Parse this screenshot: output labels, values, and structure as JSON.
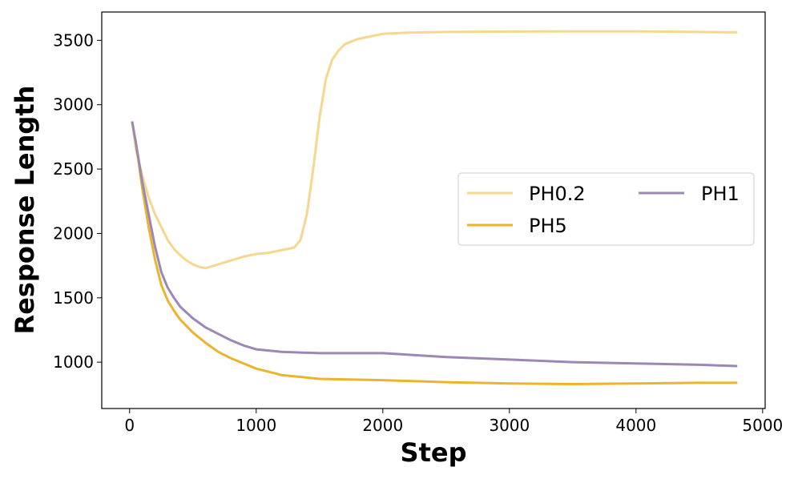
{
  "chart_data": {
    "type": "line",
    "title": "",
    "xlabel": "Step",
    "ylabel": "Response Length",
    "xlim": [
      -220,
      5020
    ],
    "ylim": [
      640,
      3720
    ],
    "x_ticks": [
      0,
      1000,
      2000,
      3000,
      4000,
      5000
    ],
    "y_ticks": [
      1000,
      1500,
      2000,
      2500,
      3000,
      3500
    ],
    "grid": false,
    "legend": {
      "position": "center-right",
      "columns": 2
    },
    "series": [
      {
        "name": "PH0.2",
        "color": "#f5d78e",
        "x": [
          20,
          50,
          100,
          150,
          200,
          250,
          300,
          350,
          400,
          450,
          500,
          550,
          600,
          700,
          800,
          900,
          1000,
          1100,
          1200,
          1300,
          1350,
          1400,
          1450,
          1500,
          1550,
          1600,
          1650,
          1700,
          1800,
          1900,
          2000,
          2200,
          2500,
          3000,
          3500,
          4000,
          4500,
          4800
        ],
        "values": [
          2870,
          2650,
          2450,
          2280,
          2150,
          2050,
          1950,
          1880,
          1830,
          1790,
          1760,
          1740,
          1730,
          1760,
          1790,
          1820,
          1840,
          1850,
          1870,
          1890,
          1950,
          2150,
          2500,
          2900,
          3200,
          3350,
          3420,
          3470,
          3510,
          3530,
          3550,
          3560,
          3565,
          3568,
          3570,
          3570,
          3565,
          3562
        ]
      },
      {
        "name": "PH1",
        "color": "#9b88b5",
        "x": [
          20,
          50,
          100,
          150,
          200,
          250,
          300,
          350,
          400,
          500,
          600,
          700,
          800,
          900,
          1000,
          1200,
          1500,
          2000,
          2500,
          3000,
          3500,
          4000,
          4500,
          4800
        ],
        "values": [
          2870,
          2700,
          2400,
          2150,
          1900,
          1700,
          1580,
          1500,
          1430,
          1340,
          1270,
          1220,
          1170,
          1130,
          1100,
          1080,
          1070,
          1070,
          1040,
          1020,
          1000,
          990,
          980,
          970
        ]
      },
      {
        "name": "PH5",
        "color": "#ecb32d",
        "x": [
          20,
          50,
          100,
          150,
          200,
          250,
          300,
          350,
          400,
          500,
          600,
          700,
          800,
          900,
          1000,
          1200,
          1500,
          2000,
          2500,
          3000,
          3500,
          4000,
          4500,
          4800
        ],
        "values": [
          2870,
          2700,
          2350,
          2050,
          1800,
          1600,
          1480,
          1400,
          1330,
          1230,
          1150,
          1080,
          1030,
          990,
          950,
          900,
          870,
          860,
          845,
          835,
          830,
          835,
          840,
          840
        ]
      }
    ]
  }
}
